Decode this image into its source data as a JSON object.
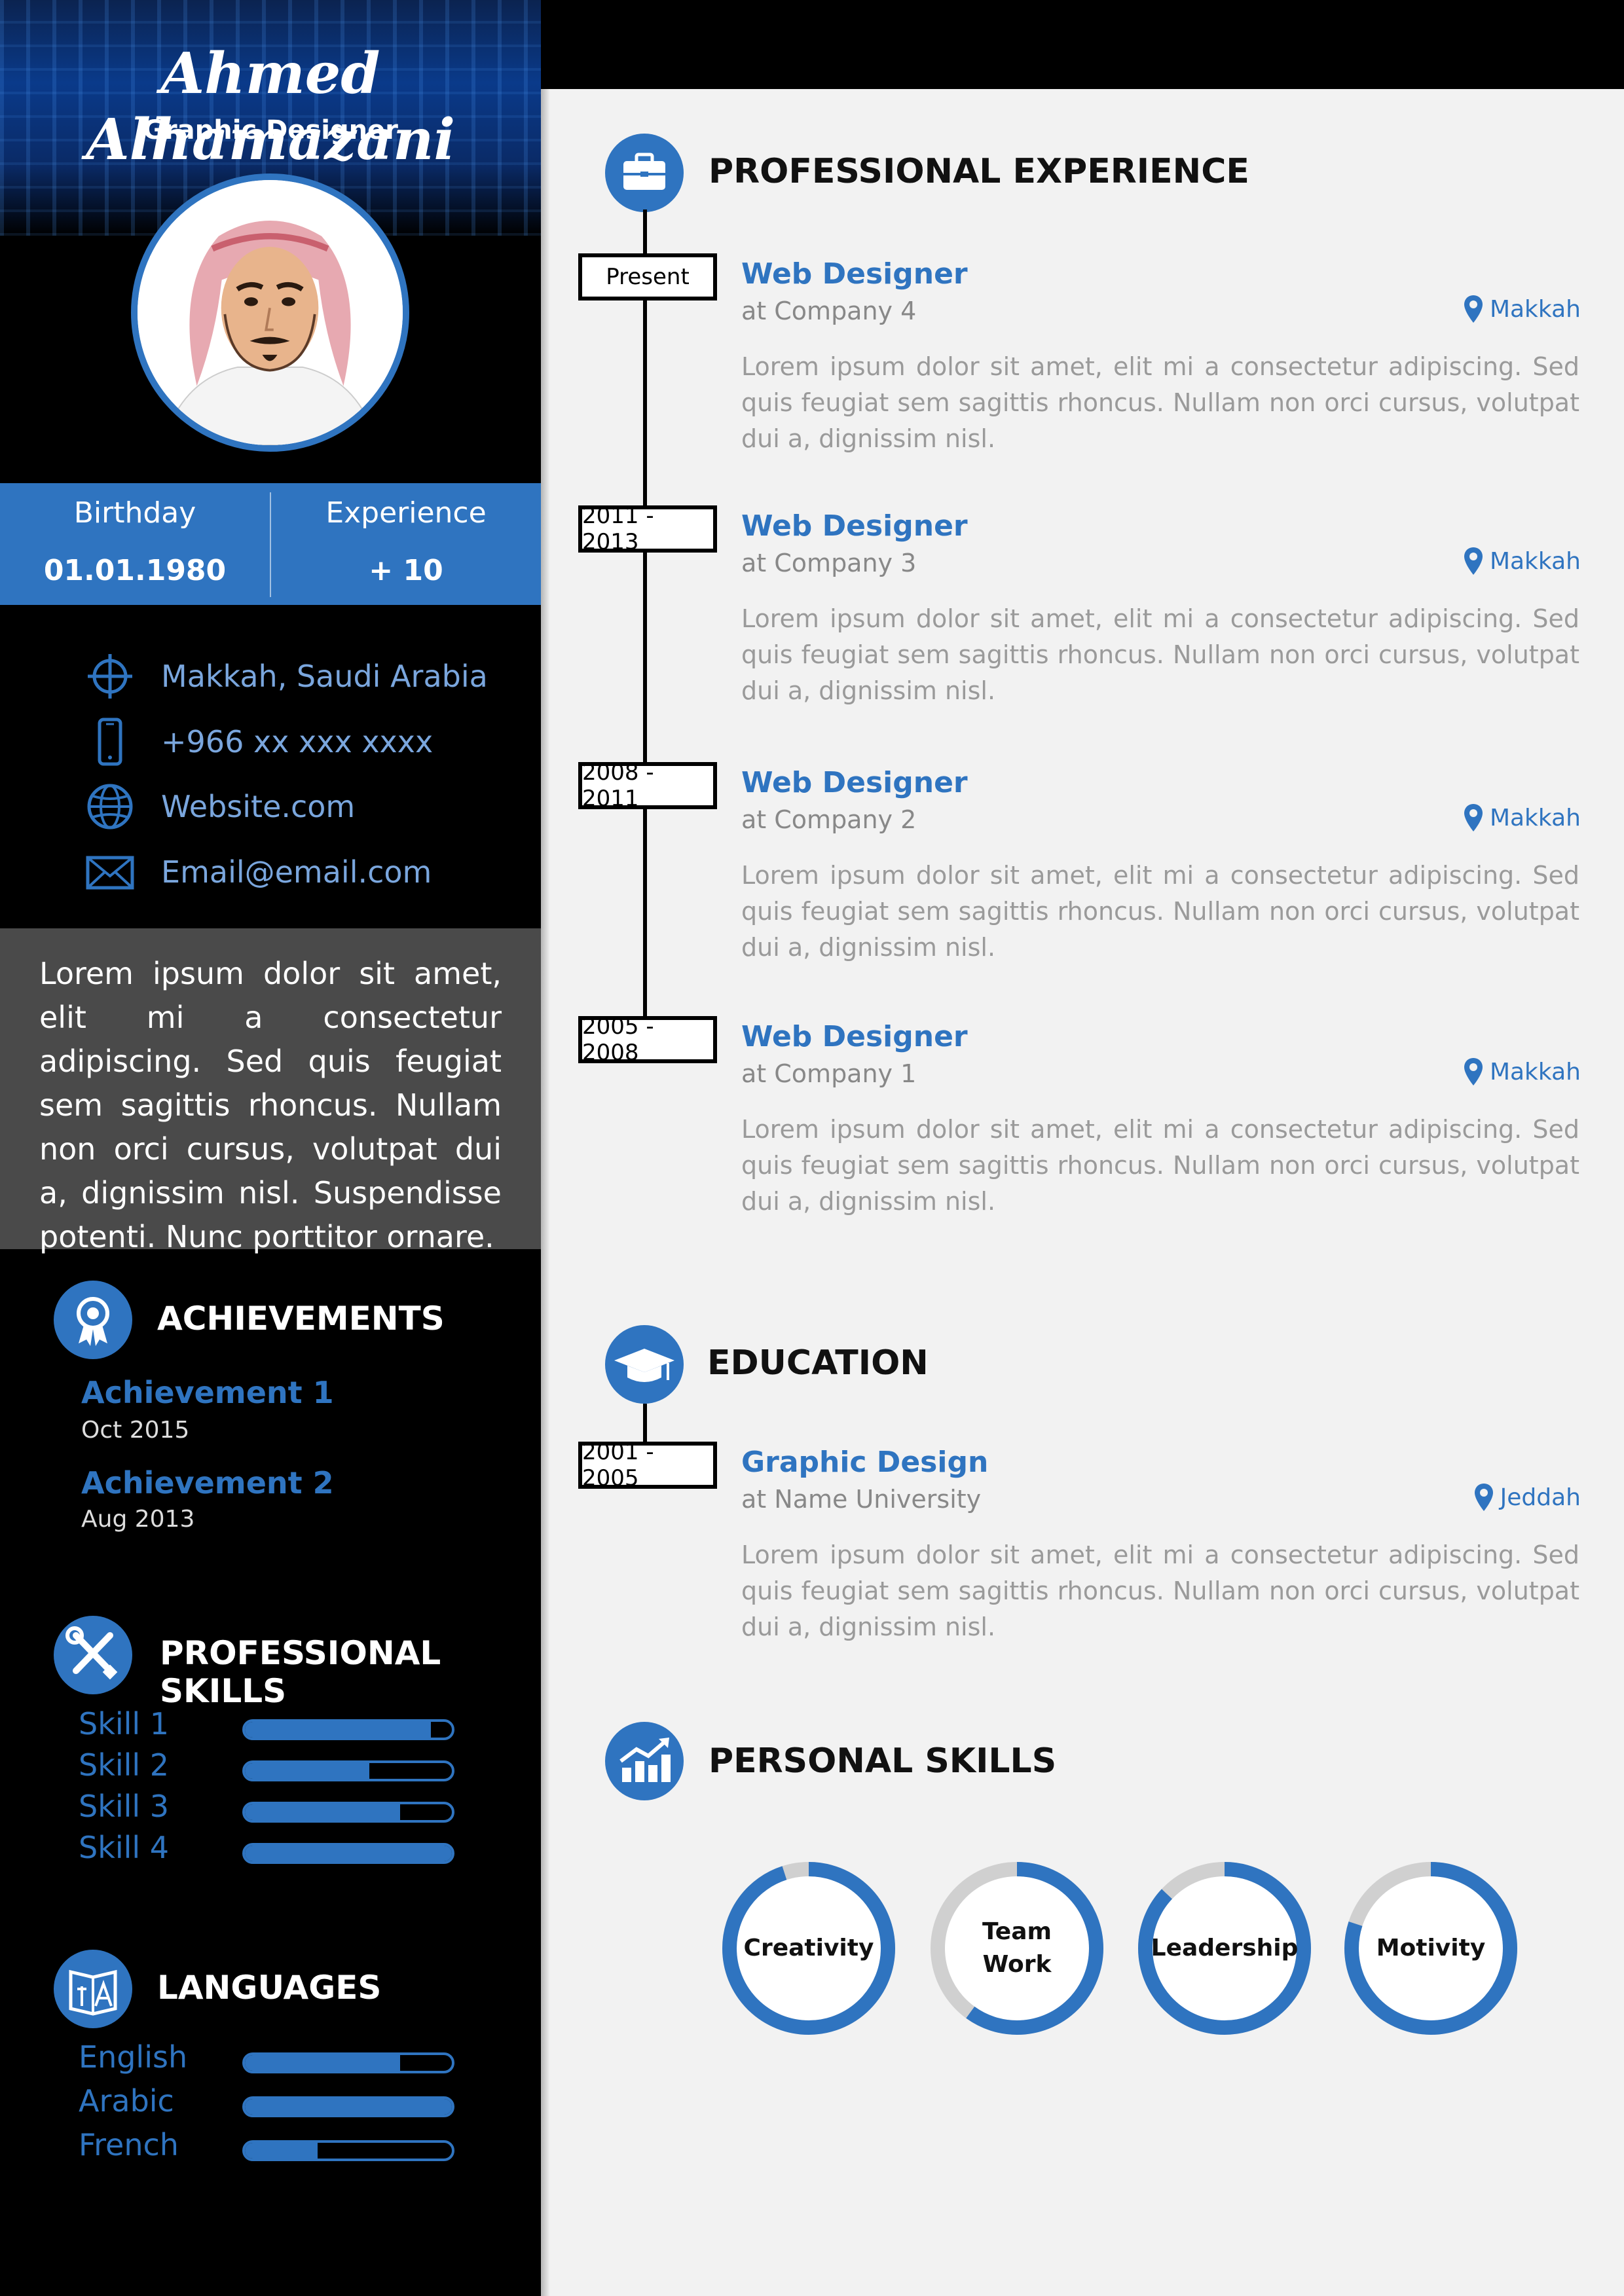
{
  "profile": {
    "name": "Ahmed Alhamazani",
    "title": "Graphic Designer"
  },
  "stats": {
    "birthday_label": "Birthday",
    "birthday_value": "01.01.1980",
    "experience_label": "Experience",
    "experience_value": "+ 10"
  },
  "contact": {
    "location": "Makkah, Saudi Arabia",
    "phone": "+966 xx xxx xxxx",
    "website": "Website.com",
    "email": "Email@email.com"
  },
  "about": "Lorem ipsum dolor sit amet, elit mi a consectetur adipiscing. Sed quis feugiat sem sagittis rhoncus. Nullam non orci cursus, volutpat dui a, dignissim nisl. Suspendisse potenti. Nunc porttitor ornare.",
  "achievements": {
    "heading": "ACHIEVEMENTS",
    "items": [
      {
        "title": "Achievement 1",
        "date": "Oct 2015"
      },
      {
        "title": "Achievement 2",
        "date": "Aug 2013"
      }
    ]
  },
  "professional_skills": {
    "heading": "PROFESSIONAL SKILLS",
    "items": [
      {
        "label": "Skill 1",
        "level": 0.9
      },
      {
        "label": "Skill 2",
        "level": 0.6
      },
      {
        "label": "Skill 3",
        "level": 0.75
      },
      {
        "label": "Skill 4",
        "level": 1.0
      }
    ]
  },
  "languages": {
    "heading": "LANGUAGES",
    "items": [
      {
        "label": "English",
        "level": 0.75
      },
      {
        "label": "Arabic",
        "level": 1.0
      },
      {
        "label": "French",
        "level": 0.35
      }
    ]
  },
  "experience": {
    "heading": "PROFESSIONAL EXPERIENCE",
    "items": [
      {
        "period": "Present",
        "title": "Web Designer",
        "company": "at Company 4",
        "location": "Makkah",
        "description": "Lorem ipsum dolor sit amet, elit mi a consectetur adipiscing. Sed quis feugiat sem sagittis rhoncus. Nullam non orci cursus, volutpat dui a, dignissim nisl."
      },
      {
        "period": "2011 - 2013",
        "title": "Web Designer",
        "company": "at Company 3",
        "location": "Makkah",
        "description": "Lorem ipsum dolor sit amet, elit mi a consectetur adipiscing. Sed quis feugiat sem sagittis rhoncus. Nullam non orci cursus, volutpat dui a, dignissim nisl."
      },
      {
        "period": "2008 - 2011",
        "title": "Web Designer",
        "company": "at Company 2",
        "location": "Makkah",
        "description": "Lorem ipsum dolor sit amet, elit mi a consectetur adipiscing. Sed quis feugiat sem sagittis rhoncus. Nullam non orci cursus, volutpat dui a, dignissim nisl."
      },
      {
        "period": "2005 - 2008",
        "title": "Web Designer",
        "company": "at Company 1",
        "location": "Makkah",
        "description": "Lorem ipsum dolor sit amet, elit mi a consectetur adipiscing. Sed quis feugiat sem sagittis rhoncus. Nullam non orci cursus, volutpat dui a, dignissim nisl."
      }
    ]
  },
  "education": {
    "heading": "EDUCATION",
    "items": [
      {
        "period": "2001 - 2005",
        "title": "Graphic Design",
        "company": "at Name University",
        "location": "Jeddah",
        "description": "Lorem ipsum dolor sit amet, elit mi a consectetur adipiscing. Sed quis feugiat sem sagittis rhoncus. Nullam non orci cursus, volutpat dui a, dignissim nisl."
      }
    ]
  },
  "personal_skills": {
    "heading": "PERSONAL SKILLS",
    "items": [
      {
        "label": "Creativity",
        "level": 0.95
      },
      {
        "label": "Team Work",
        "level": 0.6
      },
      {
        "label": "Leadership",
        "level": 0.87
      },
      {
        "label": "Motivity",
        "level": 0.8
      }
    ]
  },
  "colors": {
    "accent": "#2f74c0",
    "left_bg": "#000000",
    "about_bg": "#4a4a4a",
    "right_bg": "#f2f2f2",
    "donut_track": "#d0d0d0"
  }
}
